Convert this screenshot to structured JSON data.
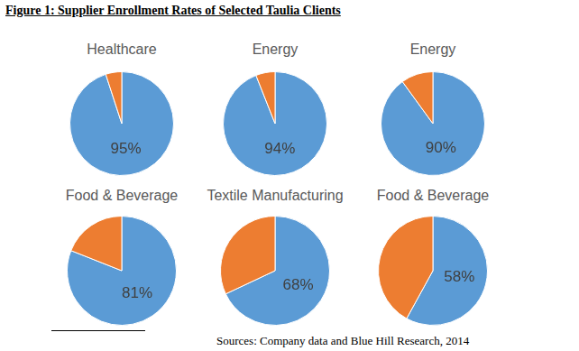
{
  "title": "Figure 1: Supplier Enrollment Rates of Selected Taulia Clients",
  "source": "Sources: Company data and Blue Hill Research, 2014",
  "chart_data": [
    {
      "type": "pie",
      "title": "Healthcare",
      "categories": [
        null,
        null
      ],
      "values": [
        95,
        5
      ],
      "value_labels": [
        "95%",
        null
      ],
      "data_labels": true,
      "colors": [
        "#5b9bd5",
        "#ed7d31"
      ]
    },
    {
      "type": "pie",
      "title": "Energy",
      "categories": [
        null,
        null
      ],
      "values": [
        94,
        6
      ],
      "value_labels": [
        "94%",
        null
      ],
      "data_labels": true,
      "colors": [
        "#5b9bd5",
        "#ed7d31"
      ]
    },
    {
      "type": "pie",
      "title": "Energy",
      "categories": [
        null,
        null
      ],
      "values": [
        90,
        10
      ],
      "value_labels": [
        "90%",
        null
      ],
      "data_labels": true,
      "colors": [
        "#5b9bd5",
        "#ed7d31"
      ]
    },
    {
      "type": "pie",
      "title": "Food & Beverage",
      "categories": [
        null,
        null
      ],
      "values": [
        81,
        19
      ],
      "value_labels": [
        "81%",
        null
      ],
      "data_labels": true,
      "colors": [
        "#5b9bd5",
        "#ed7d31"
      ]
    },
    {
      "type": "pie",
      "title": "Textile Manufacturing",
      "categories": [
        null,
        null
      ],
      "values": [
        68,
        32
      ],
      "value_labels": [
        "68%",
        null
      ],
      "data_labels": true,
      "colors": [
        "#5b9bd5",
        "#ed7d31"
      ]
    },
    {
      "type": "pie",
      "title": "Food & Beverage",
      "categories": [
        null,
        null
      ],
      "values": [
        58,
        42
      ],
      "value_labels": [
        "58%",
        null
      ],
      "data_labels": true,
      "colors": [
        "#5b9bd5",
        "#ed7d31"
      ]
    }
  ]
}
